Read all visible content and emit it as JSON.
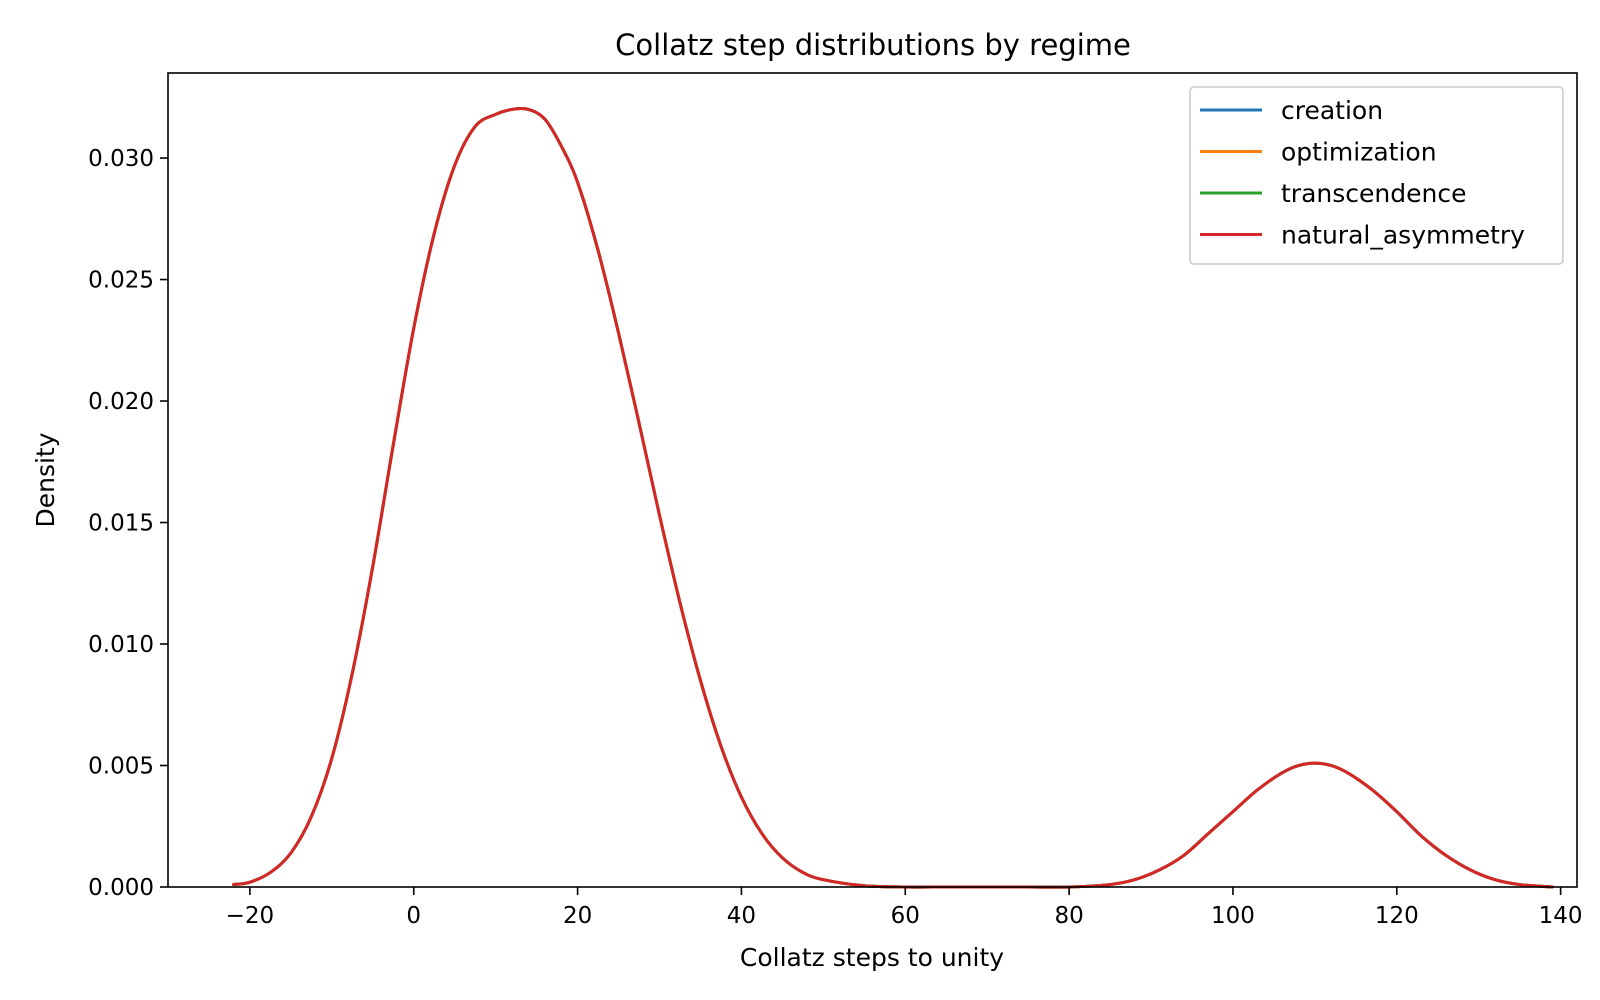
{
  "chart_data": {
    "type": "line",
    "title": "Collatz step distributions by regime",
    "xlabel": "Collatz steps to unity",
    "ylabel": "Density",
    "xlim": [
      -30,
      142
    ],
    "ylim": [
      0,
      0.0335
    ],
    "x_ticks": [
      -20,
      0,
      20,
      40,
      60,
      80,
      100,
      120,
      140
    ],
    "x_tick_labels": [
      "−20",
      "0",
      "20",
      "40",
      "60",
      "80",
      "100",
      "120",
      "140"
    ],
    "y_ticks": [
      0.0,
      0.005,
      0.01,
      0.015,
      0.02,
      0.025,
      0.03
    ],
    "y_tick_labels": [
      "0.000",
      "0.005",
      "0.010",
      "0.015",
      "0.020",
      "0.025",
      "0.030"
    ],
    "grid": false,
    "legend_position": "top-right",
    "x": [
      -22,
      -20,
      -17.5,
      -15,
      -12.5,
      -10,
      -7.5,
      -5,
      -2.5,
      0,
      2.5,
      5,
      7.5,
      10,
      12,
      14,
      16,
      18,
      20,
      22.5,
      25,
      27.5,
      30,
      32.5,
      35,
      37.5,
      40,
      42.5,
      45,
      47.5,
      50,
      55,
      60,
      65,
      70,
      75,
      80,
      85,
      88,
      91,
      94,
      97,
      100,
      103,
      106,
      108,
      110,
      112,
      114,
      117,
      120,
      123,
      126,
      129,
      132,
      135,
      139
    ],
    "series": [
      {
        "name": "creation",
        "color": "#1f77b4",
        "values": [
          0.0001,
          0.0002,
          0.0006,
          0.0014,
          0.0029,
          0.0053,
          0.0088,
          0.0132,
          0.0182,
          0.023,
          0.0269,
          0.0297,
          0.0313,
          0.0318,
          0.032,
          0.032,
          0.0316,
          0.0305,
          0.029,
          0.0262,
          0.0228,
          0.0191,
          0.0153,
          0.0117,
          0.0085,
          0.0058,
          0.0037,
          0.0022,
          0.0012,
          0.0006,
          0.0003,
          5e-05,
          0.0,
          0.0,
          0.0,
          0.0,
          0.0,
          0.0001,
          0.0003,
          0.0007,
          0.0013,
          0.0022,
          0.0031,
          0.004,
          0.0047,
          0.005,
          0.0051,
          0.005,
          0.0047,
          0.004,
          0.0031,
          0.0021,
          0.0013,
          0.0007,
          0.0003,
          0.0001,
          0.0
        ]
      },
      {
        "name": "optimization",
        "color": "#ff7f0e",
        "values": [
          0.0001,
          0.0002,
          0.0006,
          0.0014,
          0.0029,
          0.0053,
          0.0088,
          0.0132,
          0.0182,
          0.023,
          0.0269,
          0.0297,
          0.0313,
          0.0318,
          0.032,
          0.032,
          0.0316,
          0.0305,
          0.029,
          0.0262,
          0.0228,
          0.0191,
          0.0153,
          0.0117,
          0.0085,
          0.0058,
          0.0037,
          0.0022,
          0.0012,
          0.0006,
          0.0003,
          5e-05,
          0.0,
          0.0,
          0.0,
          0.0,
          0.0,
          0.0001,
          0.0003,
          0.0007,
          0.0013,
          0.0022,
          0.0031,
          0.004,
          0.0047,
          0.005,
          0.0051,
          0.005,
          0.0047,
          0.004,
          0.0031,
          0.0021,
          0.0013,
          0.0007,
          0.0003,
          0.0001,
          0.0
        ]
      },
      {
        "name": "transcendence",
        "color": "#2ca02c",
        "values": [
          0.0001,
          0.0002,
          0.0006,
          0.0014,
          0.0029,
          0.0053,
          0.0088,
          0.0132,
          0.0182,
          0.023,
          0.0269,
          0.0297,
          0.0313,
          0.0318,
          0.032,
          0.032,
          0.0316,
          0.0305,
          0.029,
          0.0262,
          0.0228,
          0.0191,
          0.0153,
          0.0117,
          0.0085,
          0.0058,
          0.0037,
          0.0022,
          0.0012,
          0.0006,
          0.0003,
          5e-05,
          0.0,
          0.0,
          0.0,
          0.0,
          0.0,
          0.0001,
          0.0003,
          0.0007,
          0.0013,
          0.0022,
          0.0031,
          0.004,
          0.0047,
          0.005,
          0.0051,
          0.005,
          0.0047,
          0.004,
          0.0031,
          0.0021,
          0.0013,
          0.0007,
          0.0003,
          0.0001,
          0.0
        ]
      },
      {
        "name": "natural_asymmetry",
        "color": "#d62728",
        "values": [
          0.0001,
          0.0002,
          0.0006,
          0.0014,
          0.0029,
          0.0053,
          0.0088,
          0.0132,
          0.0182,
          0.023,
          0.0269,
          0.0297,
          0.0313,
          0.0318,
          0.032,
          0.032,
          0.0316,
          0.0305,
          0.029,
          0.0262,
          0.0228,
          0.0191,
          0.0153,
          0.0117,
          0.0085,
          0.0058,
          0.0037,
          0.0022,
          0.0012,
          0.0006,
          0.0003,
          5e-05,
          0.0,
          0.0,
          0.0,
          0.0,
          0.0,
          0.0001,
          0.0003,
          0.0007,
          0.0013,
          0.0022,
          0.0031,
          0.004,
          0.0047,
          0.005,
          0.0051,
          0.005,
          0.0047,
          0.004,
          0.0031,
          0.0021,
          0.0013,
          0.0007,
          0.0003,
          0.0001,
          0.0
        ]
      }
    ]
  }
}
